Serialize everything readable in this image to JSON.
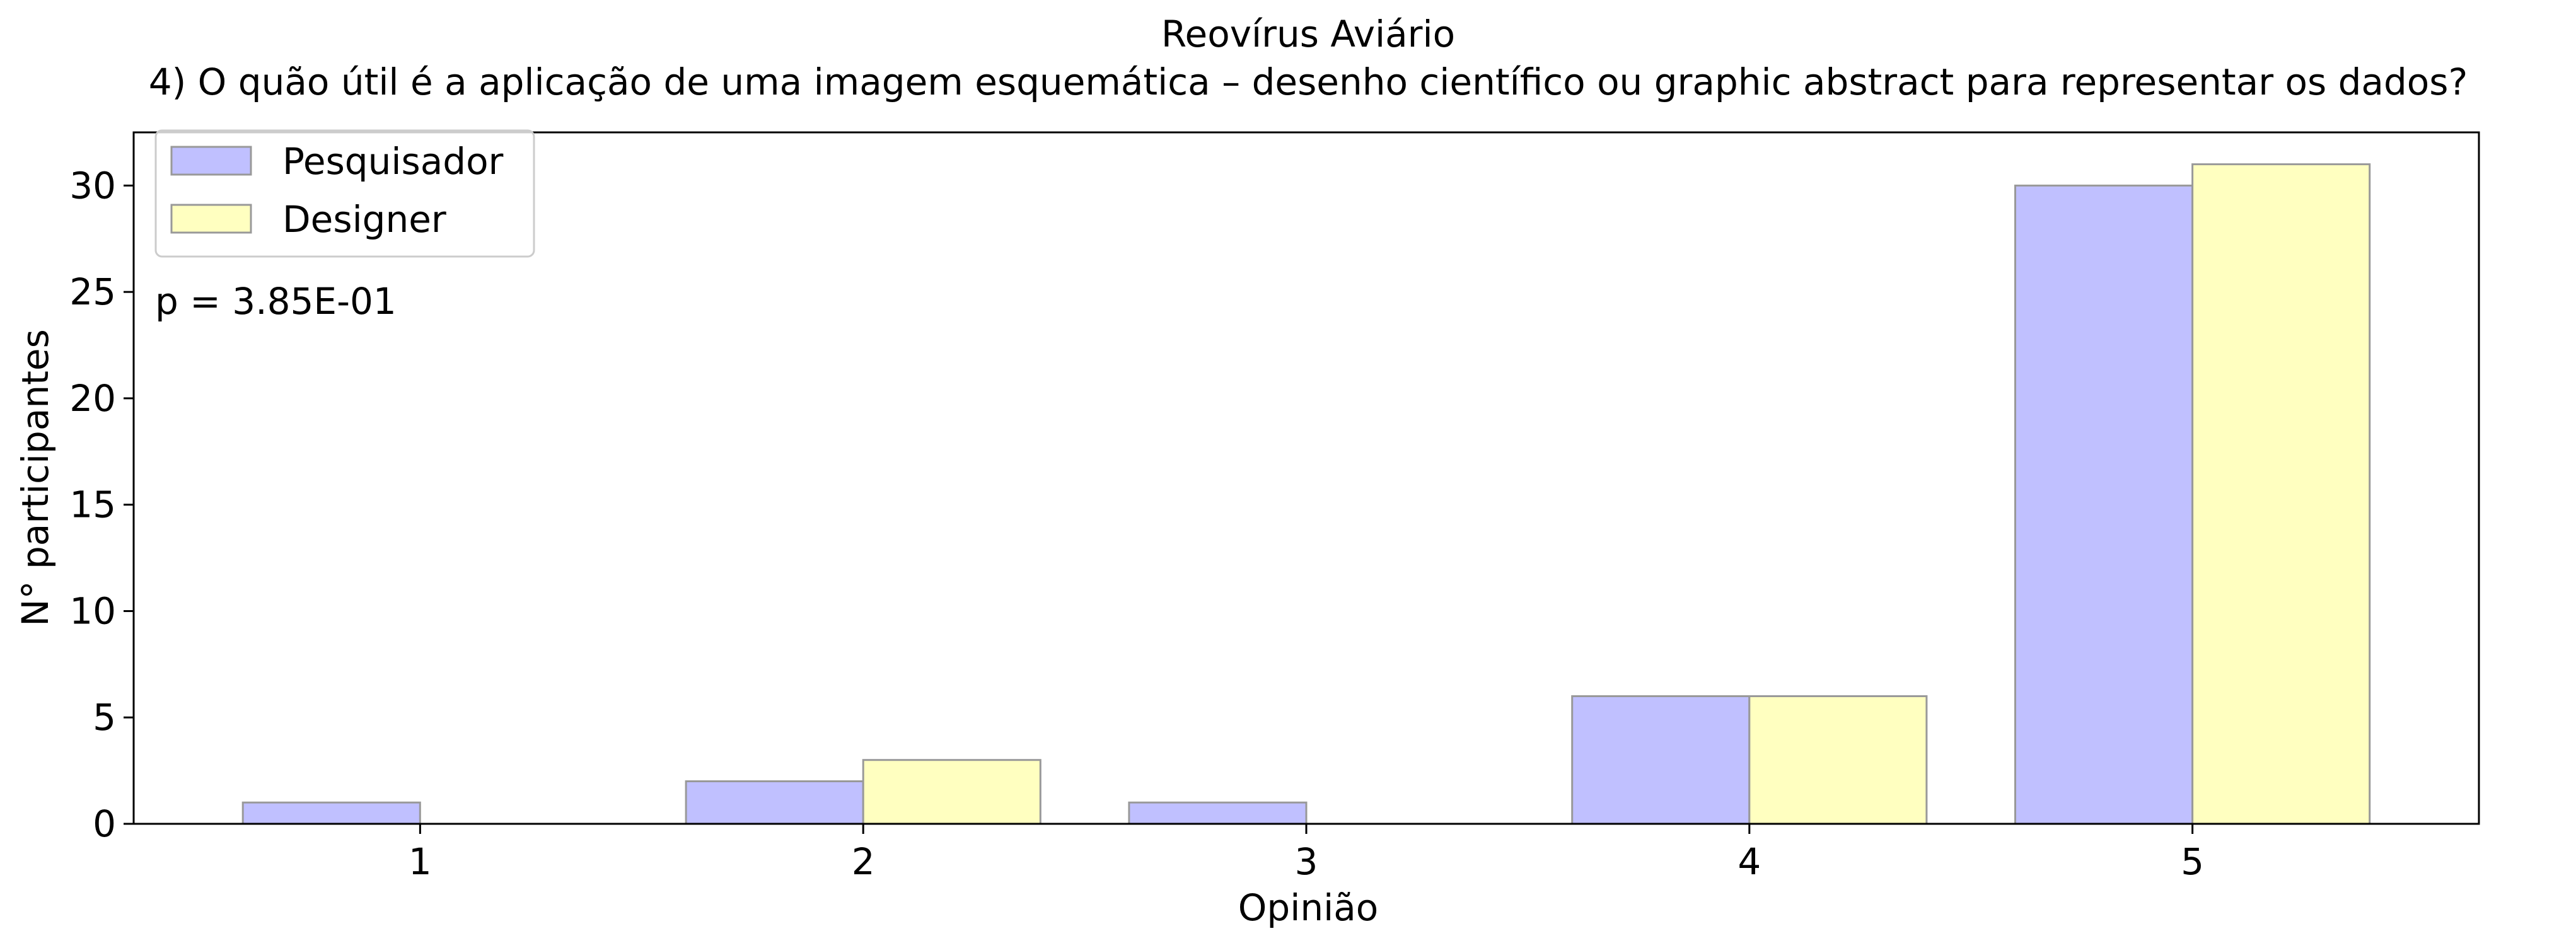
{
  "chart_data": {
    "type": "bar",
    "title": "Reovírus Aviário",
    "subtitle": "4) O quão útil é a aplicação de uma imagem esquemática – desenho científico ou graphic abstract para representar os dados?",
    "xlabel": "Opinião",
    "ylabel": "N° participantes",
    "categories": [
      "1",
      "2",
      "3",
      "4",
      "5"
    ],
    "series": [
      {
        "name": "Pesquisador",
        "values": [
          1,
          2,
          1,
          6,
          30
        ],
        "color": "#c0c0ff"
      },
      {
        "name": "Designer",
        "values": [
          0,
          3,
          0,
          6,
          31
        ],
        "color": "#ffffc0"
      }
    ],
    "ylim": [
      0,
      32.5
    ],
    "yticks": [
      0,
      5,
      10,
      15,
      20,
      25,
      30
    ],
    "grid": false,
    "legend_position": "top-left",
    "annotation": "p = 3.85E-01",
    "edge_color": "#999999"
  }
}
